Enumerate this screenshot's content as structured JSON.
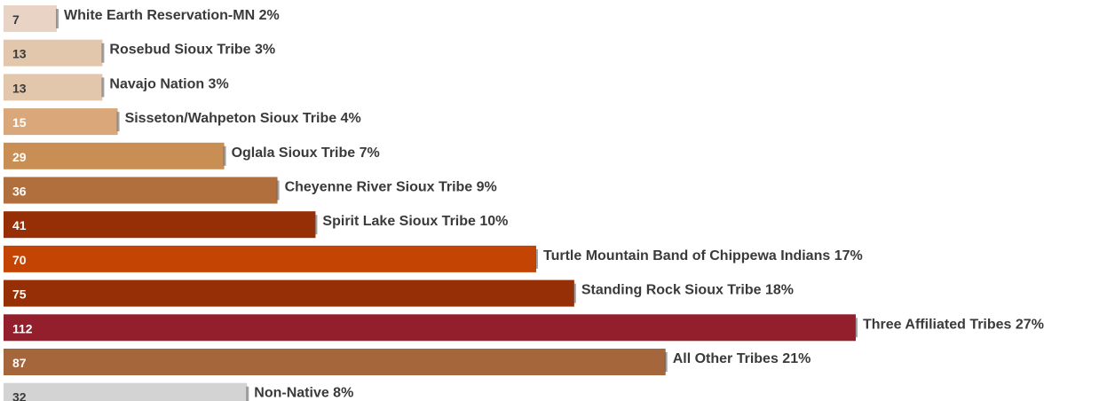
{
  "chart_data": {
    "type": "bar",
    "orientation": "horizontal",
    "title": "",
    "xlabel": "",
    "ylabel": "",
    "xlim": [
      0,
      112
    ],
    "grid": false,
    "legend": "none",
    "categories": [
      "White Earth Reservation-MN 2%",
      "Rosebud Sioux Tribe 3%",
      "Navajo Nation 3%",
      "Sisseton/Wahpeton Sioux Tribe 4%",
      "Oglala Sioux Tribe 7%",
      "Cheyenne River Sioux Tribe 9%",
      "Spirit Lake Sioux Tribe 10%",
      "Turtle Mountain Band of Chippewa Indians 17%",
      "Standing Rock Sioux Tribe 18%",
      "Three Affiliated Tribes 27%",
      "All Other Tribes 21%",
      "Non-Native 8%"
    ],
    "values": [
      7,
      13,
      13,
      15,
      29,
      36,
      41,
      70,
      75,
      112,
      87,
      32
    ],
    "bar_colors": [
      "#e8d3c4",
      "#e3c7ad",
      "#e3c7ad",
      "#d9a77a",
      "#c98e53",
      "#b06f3c",
      "#962f06",
      "#c44404",
      "#962f06",
      "#931f2c",
      "#a4663a",
      "#d3d3d3"
    ],
    "value_label_colors": [
      "#3a3a3a",
      "#3a3a3a",
      "#3a3a3a",
      "#ffffff",
      "#ffffff",
      "#ffffff",
      "#ffffff",
      "#ffffff",
      "#ffffff",
      "#ffffff",
      "#ffffff",
      "#3a3a3a"
    ]
  }
}
